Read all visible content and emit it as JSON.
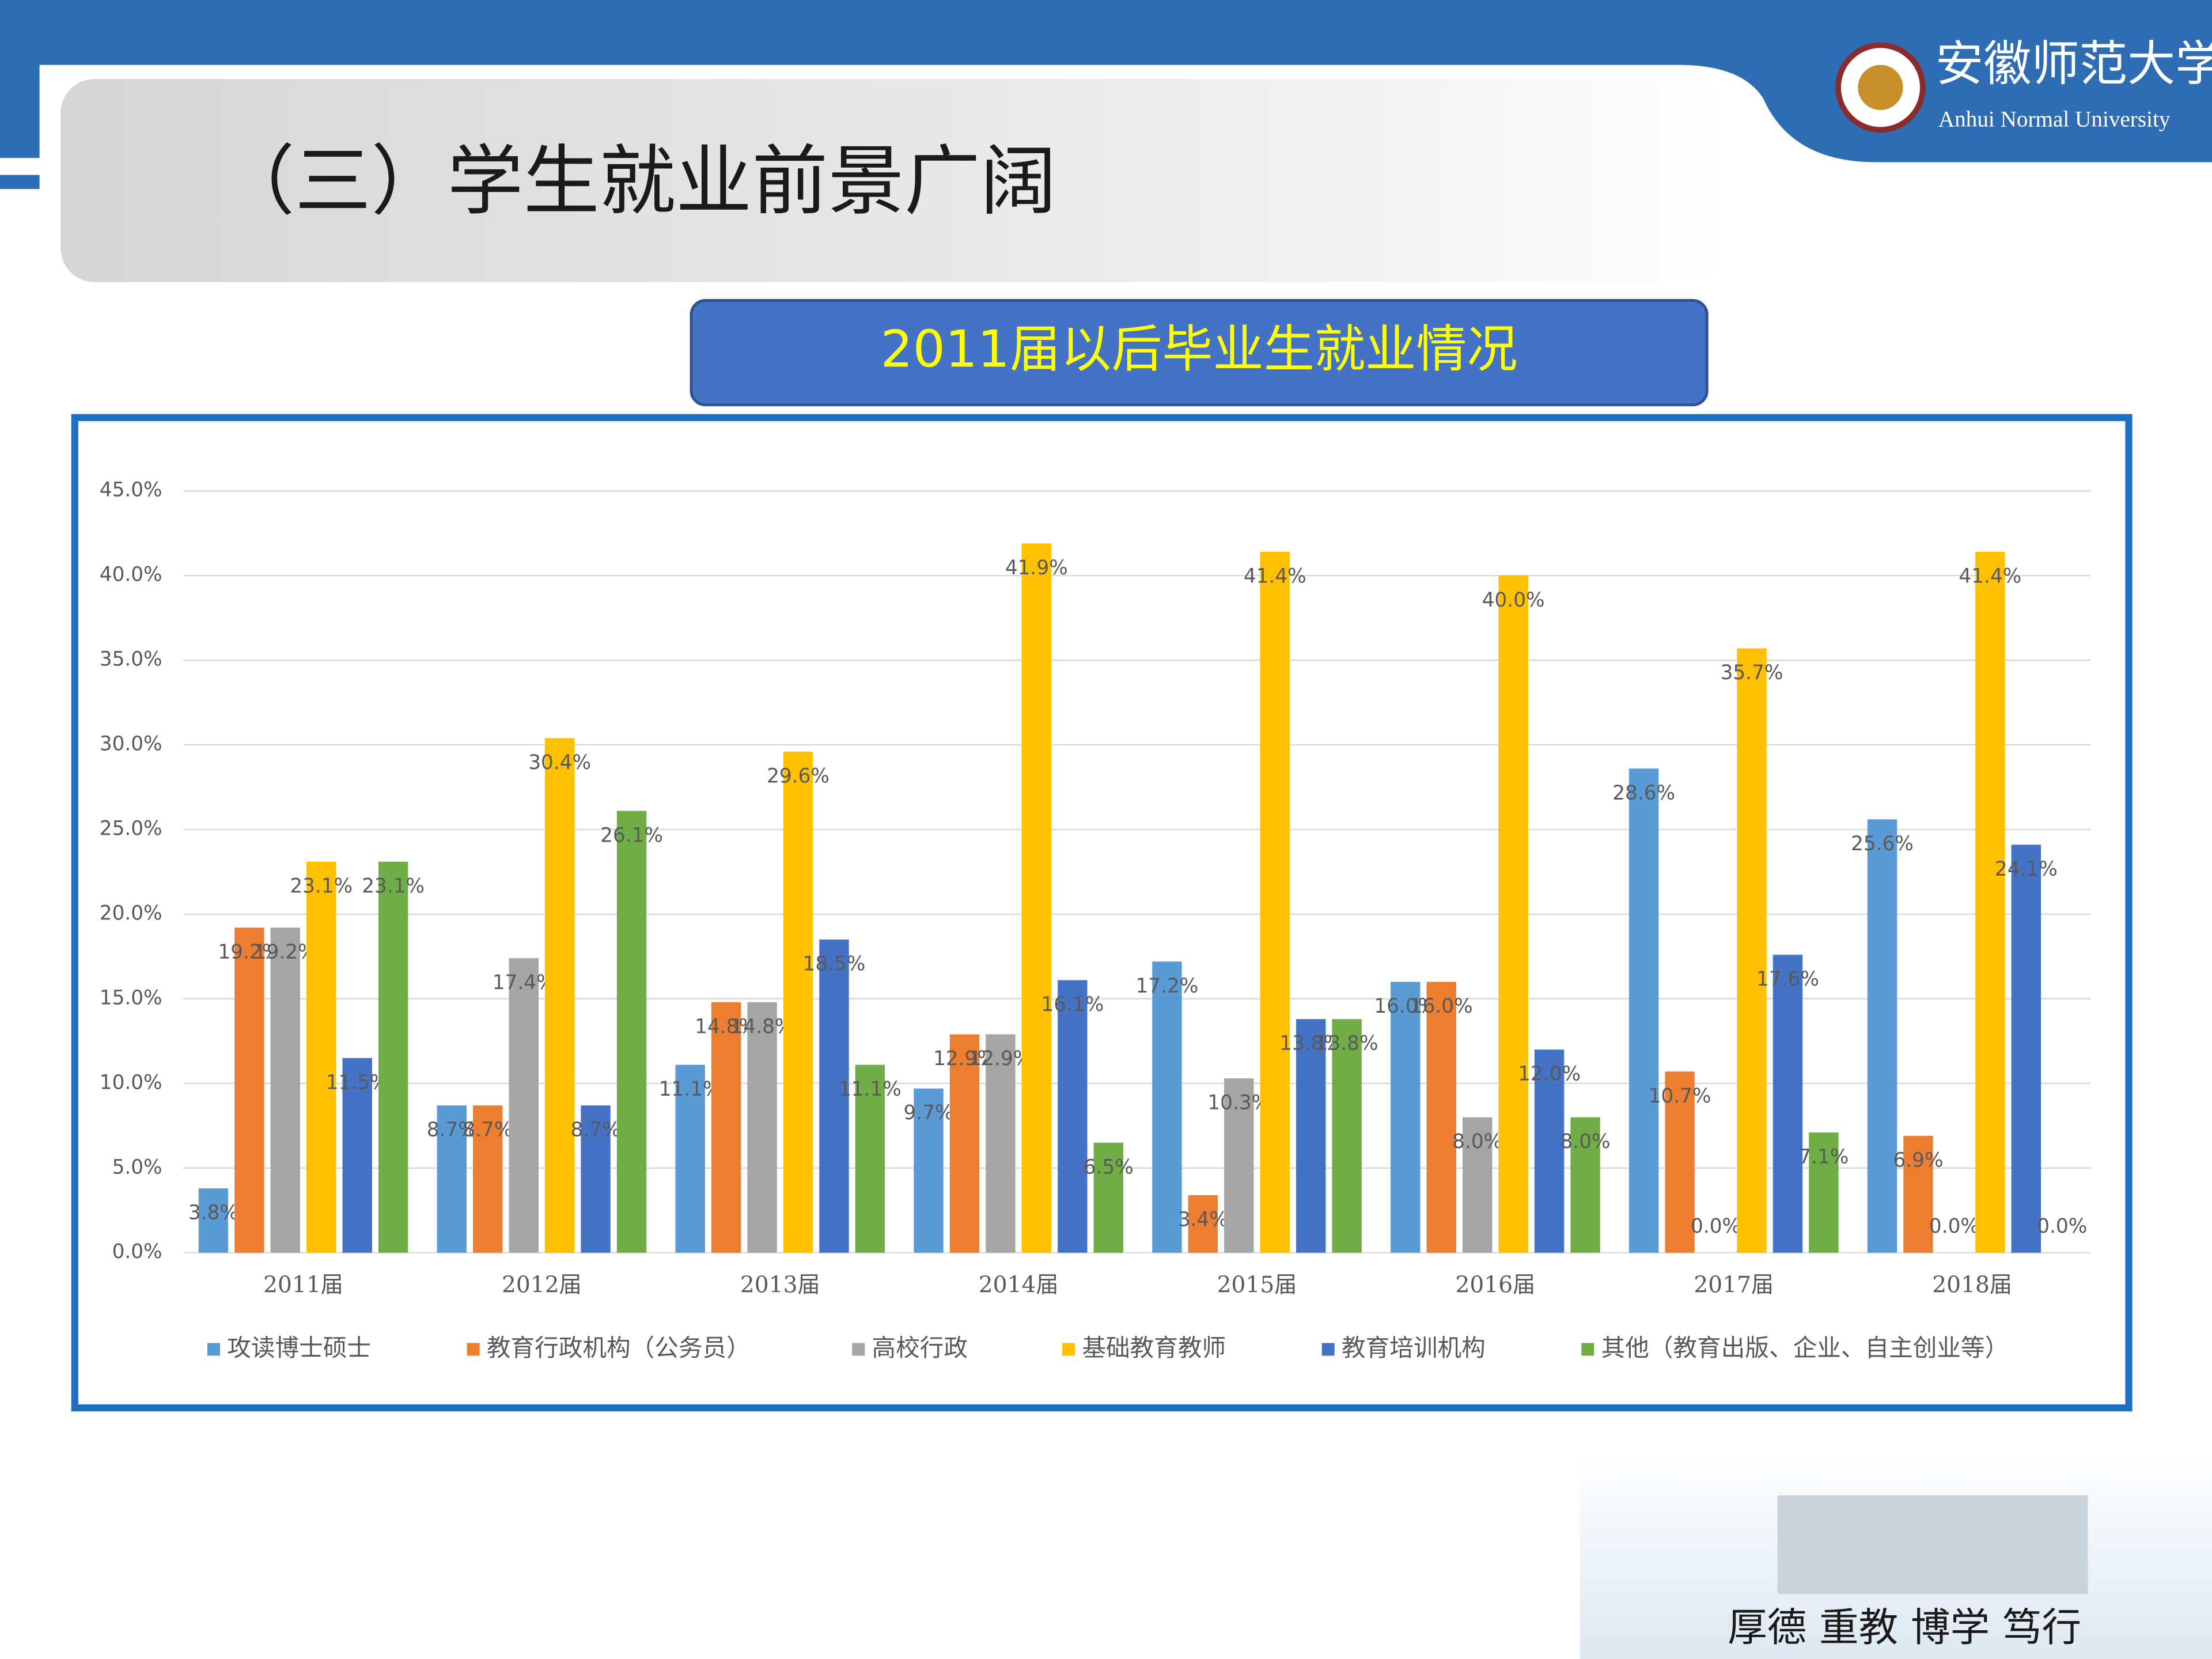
{
  "slide_title": "（三）学生就业前景广阔",
  "logo": {
    "name": "安徽师范大学",
    "english": "Anhui Normal University"
  },
  "motto": "厚德 重教 博学 笃行",
  "chart_data": {
    "type": "bar",
    "title": "2011届以后毕业生就业情况",
    "categories": [
      "2011届",
      "2012届",
      "2013届",
      "2014届",
      "2015届",
      "2016届",
      "2017届",
      "2018届"
    ],
    "series": [
      {
        "name": "攻读博士硕士",
        "color": "#5b9bd5",
        "values": [
          3.8,
          8.7,
          11.1,
          9.7,
          17.2,
          16.0,
          28.6,
          25.6
        ],
        "value_labels": [
          "3.8%",
          "8.7%",
          "11.1%",
          "9.7%",
          "17.2%",
          "16.0%",
          "28.6%",
          "25.6%"
        ]
      },
      {
        "name": "教育行政机构（公务员）",
        "color": "#ed7d31",
        "values": [
          19.2,
          8.7,
          14.8,
          12.9,
          3.4,
          16.0,
          10.7,
          6.9
        ],
        "value_labels": [
          "19.2%",
          "8.7%",
          "14.8%",
          "12.9%",
          "3.4%",
          "16.0%",
          "10.7%",
          "6.9%"
        ]
      },
      {
        "name": "高校行政",
        "color": "#a5a5a5",
        "values": [
          19.2,
          17.4,
          14.8,
          12.9,
          10.3,
          8.0,
          0.0,
          0.0
        ],
        "value_labels": [
          "19.2%",
          "17.4%",
          "14.8%",
          "12.9%",
          "10.3%",
          "8.0%",
          "0.0%",
          "0.0%"
        ]
      },
      {
        "name": "基础教育教师",
        "color": "#ffc000",
        "values": [
          23.1,
          30.4,
          29.6,
          41.9,
          41.4,
          40.0,
          35.7,
          41.4
        ],
        "value_labels": [
          "23.1%",
          "30.4%",
          "29.6%",
          "41.9%",
          "41.4%",
          "40.0%",
          "35.7%",
          "41.4%"
        ]
      },
      {
        "name": "教育培训机构",
        "color": "#4472c4",
        "values": [
          11.5,
          8.7,
          18.5,
          16.1,
          13.8,
          12.0,
          17.6,
          24.1
        ],
        "value_labels": [
          "11.5%",
          "8.7%",
          "18.5%",
          "16.1%",
          "13.8%",
          "12.0%",
          "17.6%",
          "24.1%"
        ]
      },
      {
        "name": "其他（教育出版、企业、自主创业等）",
        "color": "#70ad47",
        "values": [
          23.1,
          26.1,
          11.1,
          6.5,
          13.8,
          8.0,
          7.1,
          0.0
        ],
        "value_labels": [
          "23.1%",
          "26.1%",
          "11.1%",
          "6.5%",
          "13.8%",
          "8.0%",
          "7.1%",
          "0.0%"
        ]
      }
    ],
    "ylim": [
      0,
      45
    ],
    "yticks": [
      {
        "value": 0,
        "label": "0.0%"
      },
      {
        "value": 5,
        "label": "5.0%"
      },
      {
        "value": 10,
        "label": "10.0%"
      },
      {
        "value": 15,
        "label": "15.0%"
      },
      {
        "value": 20,
        "label": "20.0%"
      },
      {
        "value": 25,
        "label": "25.0%"
      },
      {
        "value": 30,
        "label": "30.0%"
      },
      {
        "value": 35,
        "label": "35.0%"
      },
      {
        "value": 40,
        "label": "40.0%"
      },
      {
        "value": 45,
        "label": "45.0%"
      }
    ],
    "grid": true,
    "legend": "bottom"
  }
}
